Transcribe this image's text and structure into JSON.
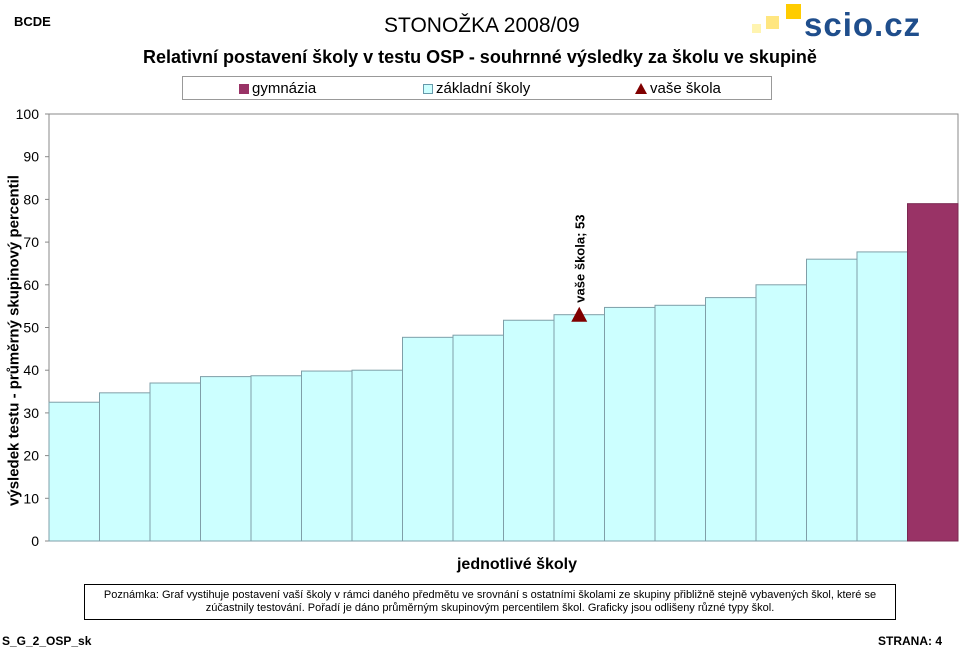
{
  "header": {
    "code": "BCDE",
    "title": "STONOŽKA 2008/09",
    "logo_text": "scio.cz"
  },
  "chart_title": "Relativní postavení školy v testu OSP - souhrnné výsledky za školu ve skupině",
  "legend": {
    "gymnazia": "gymnázia",
    "zakladni": "základní školy",
    "vase": "vaše škola"
  },
  "note": "Poznámka: Graf vystihuje postavení vaší školy v rámci daného předmětu ve srovnání s ostatními školami ze skupiny přibližně stejně vybavených škol, které se zúčastnily testování. Pořadí je dáno průměrným skupinovým percentilem škol. Graficky jsou odlišeny různé typy škol.",
  "footer": {
    "left": "S_G_2_OSP_sk",
    "right": "STRANA: 4"
  },
  "colors": {
    "gymnazia": "#993366",
    "zakladni": "#ccffff",
    "vase": "#800000",
    "logo_blue": "#1f4e8c",
    "logo_yellow": "#ffcc00"
  },
  "chart_data": {
    "type": "bar",
    "xlabel": "jednotlivé školy",
    "ylabel": "výsledek testu - průměrný skupinový percentil",
    "ylim": [
      0,
      100
    ],
    "yticks": [
      0,
      10,
      20,
      30,
      40,
      50,
      60,
      70,
      80,
      90,
      100
    ],
    "grid": false,
    "legend_position": "top",
    "series": [
      {
        "name": "základní školy",
        "values": [
          32.5,
          34.7,
          37.0,
          38.5,
          38.7,
          39.8,
          40.0,
          47.7,
          48.2,
          51.7,
          53.0,
          54.7,
          55.2,
          57.0,
          60.0,
          66.0,
          67.7,
          null
        ]
      },
      {
        "name": "gymnázia",
        "values": [
          null,
          null,
          null,
          null,
          null,
          null,
          null,
          null,
          null,
          null,
          null,
          null,
          null,
          null,
          null,
          null,
          null,
          79.0
        ]
      }
    ],
    "marker": {
      "name": "vaše škola",
      "index": 10,
      "value": 53,
      "label": "vaše škola; 53"
    }
  }
}
